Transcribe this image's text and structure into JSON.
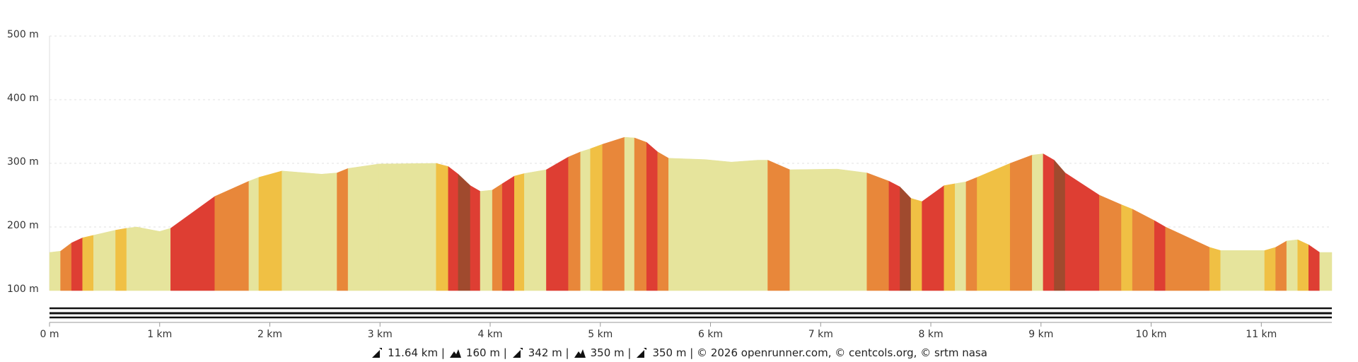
{
  "chart_data": {
    "type": "area",
    "x": [
      0,
      0.1,
      0.2,
      0.3,
      0.4,
      0.6,
      0.7,
      0.79,
      1.0,
      1.1,
      1.5,
      1.81,
      1.9,
      2.11,
      2.47,
      2.61,
      2.71,
      2.99,
      3.51,
      3.62,
      3.71,
      3.82,
      3.91,
      4.02,
      4.11,
      4.22,
      4.31,
      4.51,
      4.71,
      4.82,
      4.91,
      5.02,
      5.22,
      5.31,
      5.42,
      5.52,
      5.62,
      5.95,
      6.19,
      6.43,
      6.52,
      6.72,
      7.15,
      7.42,
      7.62,
      7.72,
      7.82,
      7.92,
      8.12,
      8.22,
      8.32,
      8.42,
      8.72,
      8.92,
      9.02,
      9.12,
      9.22,
      9.53,
      9.73,
      9.83,
      10.03,
      10.13,
      10.53,
      10.63,
      10.83,
      11.03,
      11.13,
      11.23,
      11.33,
      11.43,
      11.53,
      11.64
    ],
    "series": [
      {
        "values": [
          160,
          162,
          175,
          183,
          187,
          195,
          198,
          200,
          193,
          198,
          248,
          272,
          278,
          288,
          283,
          285,
          292,
          299,
          300,
          295,
          283,
          265,
          256,
          258,
          268,
          280,
          284,
          290,
          310,
          318,
          323,
          330,
          341,
          340,
          333,
          318,
          308,
          306,
          302,
          305,
          305,
          290,
          291,
          285,
          272,
          263,
          245,
          240,
          265,
          268,
          271,
          278,
          300,
          313,
          315,
          305,
          285,
          250,
          235,
          228,
          210,
          200,
          168,
          163,
          163,
          163,
          168,
          178,
          180,
          172,
          160,
          160
        ],
        "segment_colors": [
          "#e6e49c",
          "#e8873a",
          "#de3e33",
          "#f0c044",
          "#e6e49c",
          "#f0c044",
          "#e6e49c",
          "#e6e49c",
          "#e6e49c",
          "#de3e33",
          "#e8873a",
          "#e6e49c",
          "#f0c044",
          "#e6e49c",
          "#e6e49c",
          "#e8873a",
          "#e6e49c",
          "#e6e49c",
          "#f0c044",
          "#de3e33",
          "#a04a2e",
          "#de3e33",
          "#e6e49c",
          "#e8873a",
          "#de3e33",
          "#f0c044",
          "#e6e49c",
          "#de3e33",
          "#e8873a",
          "#e6e49c",
          "#f0c044",
          "#e8873a",
          "#e6e49c",
          "#e8873a",
          "#de3e33",
          "#e8873a",
          "#e6e49c",
          "#e6e49c",
          "#e6e49c",
          "#e6e49c",
          "#e8873a",
          "#e6e49c",
          "#e6e49c",
          "#e8873a",
          "#de3e33",
          "#a04a2e",
          "#f0c044",
          "#de3e33",
          "#f0c044",
          "#e6e49c",
          "#e8873a",
          "#f0c044",
          "#e8873a",
          "#e6e49c",
          "#de3e33",
          "#a04a2e",
          "#de3e33",
          "#e8873a",
          "#f0c044",
          "#e8873a",
          "#de3e33",
          "#e8873a",
          "#f0c044",
          "#e6e49c",
          "#e6e49c",
          "#f0c044",
          "#e8873a",
          "#e6e49c",
          "#f0c044",
          "#de3e33",
          "#e6e49c"
        ]
      }
    ],
    "xlim": [
      0,
      11.64
    ],
    "ylim": [
      100,
      500
    ],
    "xticks": [
      {
        "value": 0,
        "label": "0 m"
      },
      {
        "value": 1,
        "label": "1 km"
      },
      {
        "value": 2,
        "label": "2 km"
      },
      {
        "value": 3,
        "label": "3 km"
      },
      {
        "value": 4,
        "label": "4 km"
      },
      {
        "value": 5,
        "label": "5 km"
      },
      {
        "value": 6,
        "label": "6 km"
      },
      {
        "value": 7,
        "label": "7 km"
      },
      {
        "value": 8,
        "label": "8 km"
      },
      {
        "value": 9,
        "label": "9 km"
      },
      {
        "value": 10,
        "label": "10 km"
      },
      {
        "value": 11,
        "label": "11 km"
      }
    ],
    "yticks": [
      {
        "value": 100,
        "label": "100 m"
      },
      {
        "value": 200,
        "label": "200 m"
      },
      {
        "value": 300,
        "label": "300 m"
      },
      {
        "value": 400,
        "label": "400 m"
      },
      {
        "value": 500,
        "label": "500 m"
      }
    ],
    "grid": true
  },
  "footer": [
    "11.64 km |",
    "160 m |",
    "342 m |",
    "350 m |",
    "350 m | © 2026 openrunner.com, © centcols.org, © srtm nasa"
  ]
}
